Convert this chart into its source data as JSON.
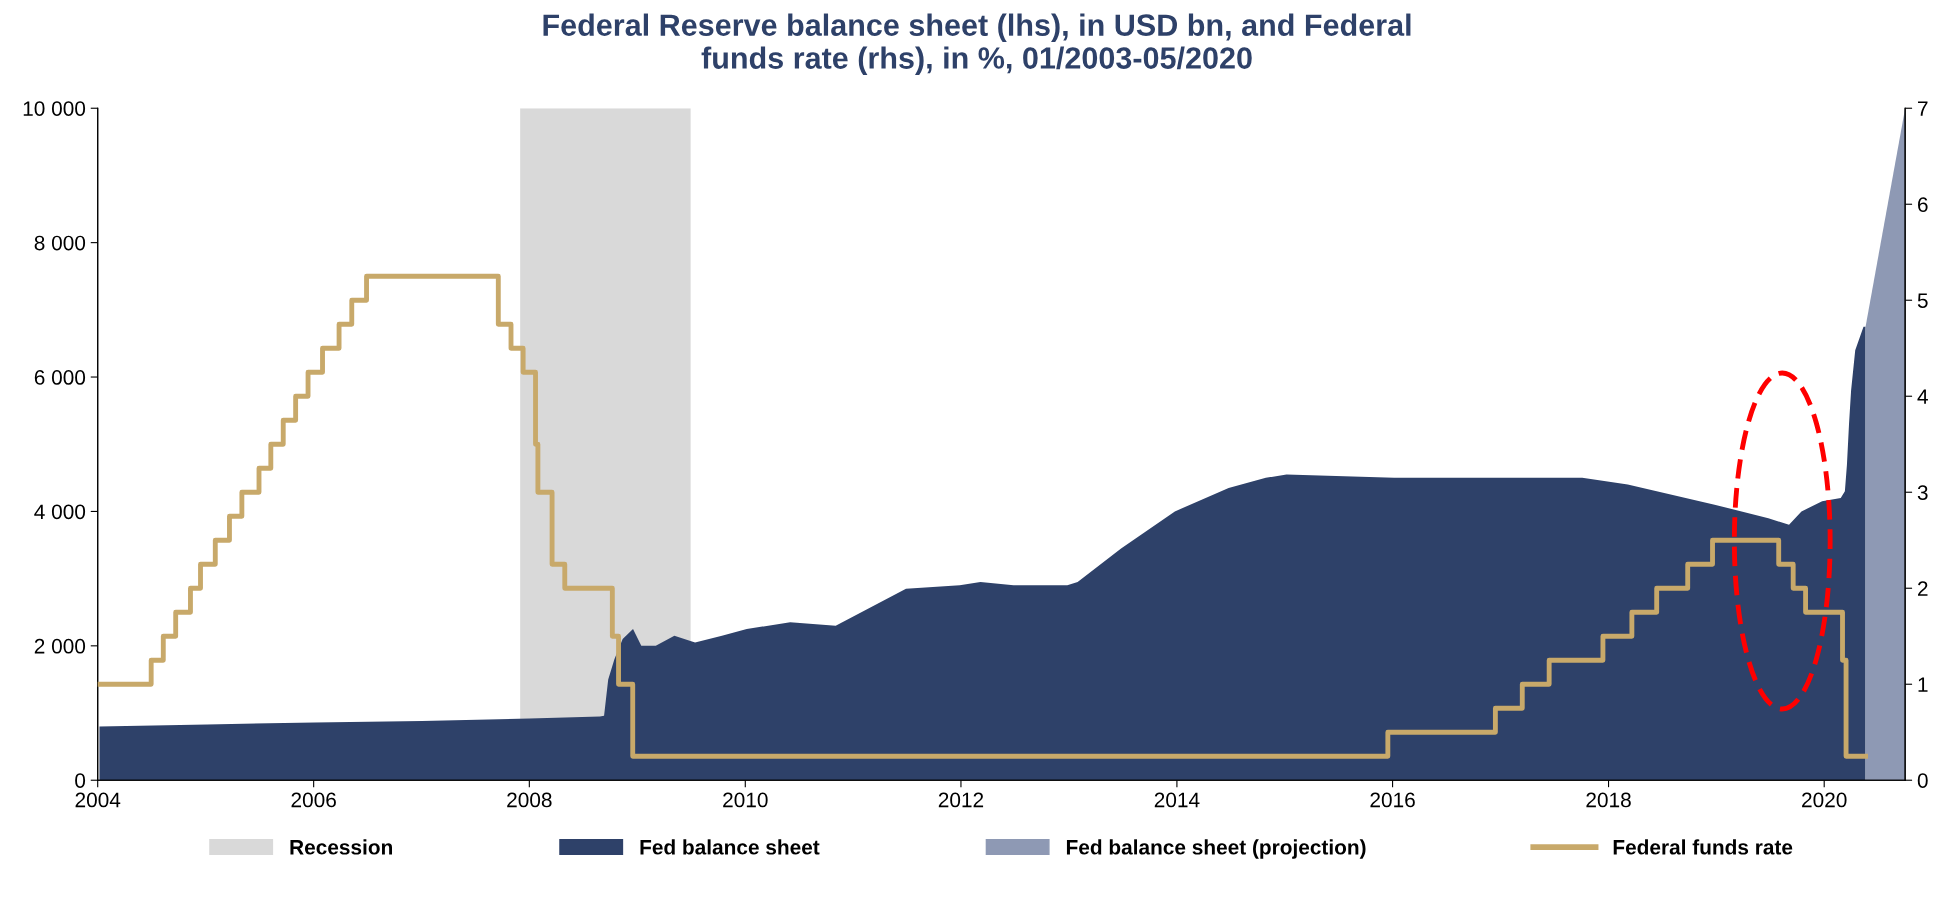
{
  "chart_data": {
    "type": "area",
    "title": "Federal Reserve balance sheet (lhs), in USD bn, and Federal\nfunds rate (rhs), in %, 01/2003-05/2020",
    "xlim": [
      "2004-01-01",
      "2020-10-01"
    ],
    "xticks": [
      "2004",
      "2006",
      "2008",
      "2010",
      "2012",
      "2014",
      "2016",
      "2018",
      "2020"
    ],
    "ylim": [
      0,
      10000
    ],
    "yticks": [
      0,
      {
        "value": 2000,
        "label": "2 000"
      },
      {
        "value": 4000,
        "label": "4 000"
      },
      {
        "value": 6000,
        "label": "6 000"
      },
      {
        "value": 8000,
        "label": "8 000"
      },
      {
        "value": 10000,
        "label": "10 000"
      }
    ],
    "y2lim": [
      0,
      7
    ],
    "y2ticks": [
      0,
      1,
      2,
      3,
      4,
      5,
      6,
      7
    ],
    "grid": false,
    "legend": "bottom",
    "bands": [
      {
        "axis": "x",
        "from": "2007-12-01",
        "to": "2009-06-30",
        "label": "Recession",
        "color": "#d9d9d9"
      }
    ],
    "series": [
      {
        "name": "Fed balance sheet",
        "color": "#2e4169",
        "x": [
          "2004-01-07",
          "2005-01-05",
          "2006-01-04",
          "2007-01-03",
          "2008-01-02",
          "2008-08-27",
          "2008-09-10",
          "2008-09-24",
          "2008-10-15",
          "2008-11-12",
          "2008-12-17",
          "2009-01-14",
          "2009-03-04",
          "2009-05-06",
          "2009-07-15",
          "2009-10-14",
          "2010-01-06",
          "2010-06-02",
          "2010-11-03",
          "2011-06-29",
          "2011-12-28",
          "2012-03-07",
          "2012-06-27",
          "2012-12-26",
          "2013-01-30",
          "2013-06-26",
          "2013-12-25",
          "2014-06-25",
          "2014-10-29",
          "2015-01-07",
          "2016-01-06",
          "2017-01-04",
          "2017-10-04",
          "2018-03-07",
          "2018-12-26",
          "2019-06-26",
          "2019-09-04",
          "2019-10-16",
          "2019-12-25",
          "2020-02-26",
          "2020-03-11",
          "2020-03-18",
          "2020-03-25",
          "2020-04-01",
          "2020-04-15",
          "2020-05-13",
          "2020-05-20"
        ],
        "values": [
          800,
          830,
          860,
          880,
          920,
          950,
          960,
          1500,
          1800,
          2100,
          2250,
          2000,
          2000,
          2150,
          2050,
          2150,
          2250,
          2350,
          2300,
          2850,
          2900,
          2950,
          2900,
          2900,
          2950,
          3450,
          4000,
          4350,
          4500,
          4550,
          4500,
          4500,
          4500,
          4400,
          4100,
          3900,
          3800,
          4000,
          4150,
          4200,
          4300,
          4700,
          5300,
          5800,
          6400,
          6750,
          6750
        ]
      },
      {
        "name": "Fed balance sheet (projection)",
        "color": "#8e99b4",
        "x": [
          "2020-05-20",
          "2020-10-01"
        ],
        "values": [
          6750,
          10000
        ]
      },
      {
        "name": "Federal funds rate",
        "type": "step",
        "axis": "y2",
        "color": "#c8a96a",
        "x": [
          "2004-01-01",
          "2004-06-30",
          "2004-08-10",
          "2004-09-21",
          "2004-11-10",
          "2004-12-14",
          "2005-02-02",
          "2005-03-22",
          "2005-05-03",
          "2005-06-30",
          "2005-08-09",
          "2005-09-20",
          "2005-11-01",
          "2005-12-13",
          "2006-01-31",
          "2006-03-28",
          "2006-05-10",
          "2006-06-29",
          "2007-09-18",
          "2007-10-31",
          "2007-12-11",
          "2008-01-22",
          "2008-01-30",
          "2008-03-18",
          "2008-04-30",
          "2008-10-08",
          "2008-10-29",
          "2008-12-16",
          "2015-12-16",
          "2016-12-14",
          "2017-03-15",
          "2017-06-14",
          "2017-12-13",
          "2018-03-21",
          "2018-06-13",
          "2018-09-26",
          "2018-12-19",
          "2019-07-31",
          "2019-09-18",
          "2019-10-30",
          "2020-03-03",
          "2020-03-15",
          "2020-05-20"
        ],
        "values": [
          1.0,
          1.25,
          1.5,
          1.75,
          2.0,
          2.25,
          2.5,
          2.75,
          3.0,
          3.25,
          3.5,
          3.75,
          4.0,
          4.25,
          4.5,
          4.75,
          5.0,
          5.25,
          4.75,
          4.5,
          4.25,
          3.5,
          3.0,
          2.25,
          2.0,
          1.5,
          1.0,
          0.25,
          0.5,
          0.75,
          1.0,
          1.25,
          1.5,
          1.75,
          2.0,
          2.25,
          2.5,
          2.25,
          2.0,
          1.75,
          1.25,
          0.25,
          0.25
        ]
      }
    ]
  }
}
